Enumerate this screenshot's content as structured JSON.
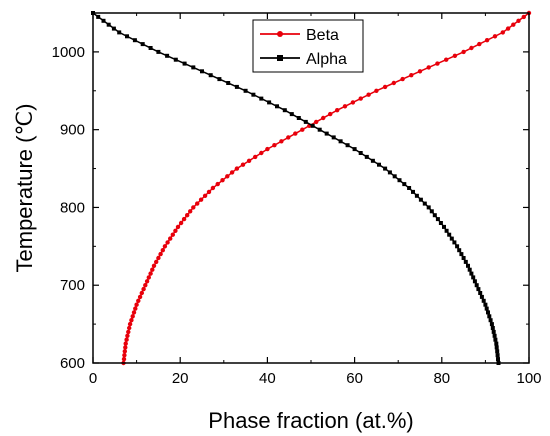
{
  "chart_data": {
    "type": "line",
    "xlabel": "Phase fraction (at.%)",
    "ylabel": "Temperature (℃)",
    "xlim": [
      0,
      100
    ],
    "ylim": [
      600,
      1050
    ],
    "x_ticks": [
      "0",
      "20",
      "40",
      "60",
      "80",
      "100"
    ],
    "y_ticks": [
      "600",
      "700",
      "800",
      "900",
      "1000"
    ],
    "grid": false,
    "legend_position": "top-center",
    "legend": [
      "Beta",
      "Alpha"
    ],
    "series": [
      {
        "name": "Beta",
        "color": "#e8000b",
        "marker": "circle",
        "points": [
          [
            7,
            600
          ],
          [
            7.5,
            625
          ],
          [
            8.5,
            650
          ],
          [
            10,
            675
          ],
          [
            12,
            700
          ],
          [
            14,
            725
          ],
          [
            16.5,
            750
          ],
          [
            19.5,
            775
          ],
          [
            23,
            800
          ],
          [
            27.5,
            825
          ],
          [
            33,
            850
          ],
          [
            40,
            875
          ],
          [
            48,
            900
          ],
          [
            56,
            925
          ],
          [
            65,
            950
          ],
          [
            75,
            975
          ],
          [
            85,
            1000
          ],
          [
            94,
            1025
          ],
          [
            100,
            1050
          ]
        ]
      },
      {
        "name": "Alpha",
        "color": "#000000",
        "marker": "square",
        "points": [
          [
            93,
            600
          ],
          [
            92.5,
            625
          ],
          [
            91.5,
            650
          ],
          [
            90,
            675
          ],
          [
            88,
            700
          ],
          [
            86,
            725
          ],
          [
            83.5,
            750
          ],
          [
            80.5,
            775
          ],
          [
            77,
            800
          ],
          [
            72.5,
            825
          ],
          [
            67,
            850
          ],
          [
            60,
            875
          ],
          [
            52,
            900
          ],
          [
            44,
            925
          ],
          [
            35,
            950
          ],
          [
            25,
            975
          ],
          [
            15,
            1000
          ],
          [
            6,
            1025
          ],
          [
            0,
            1050
          ]
        ]
      }
    ]
  }
}
